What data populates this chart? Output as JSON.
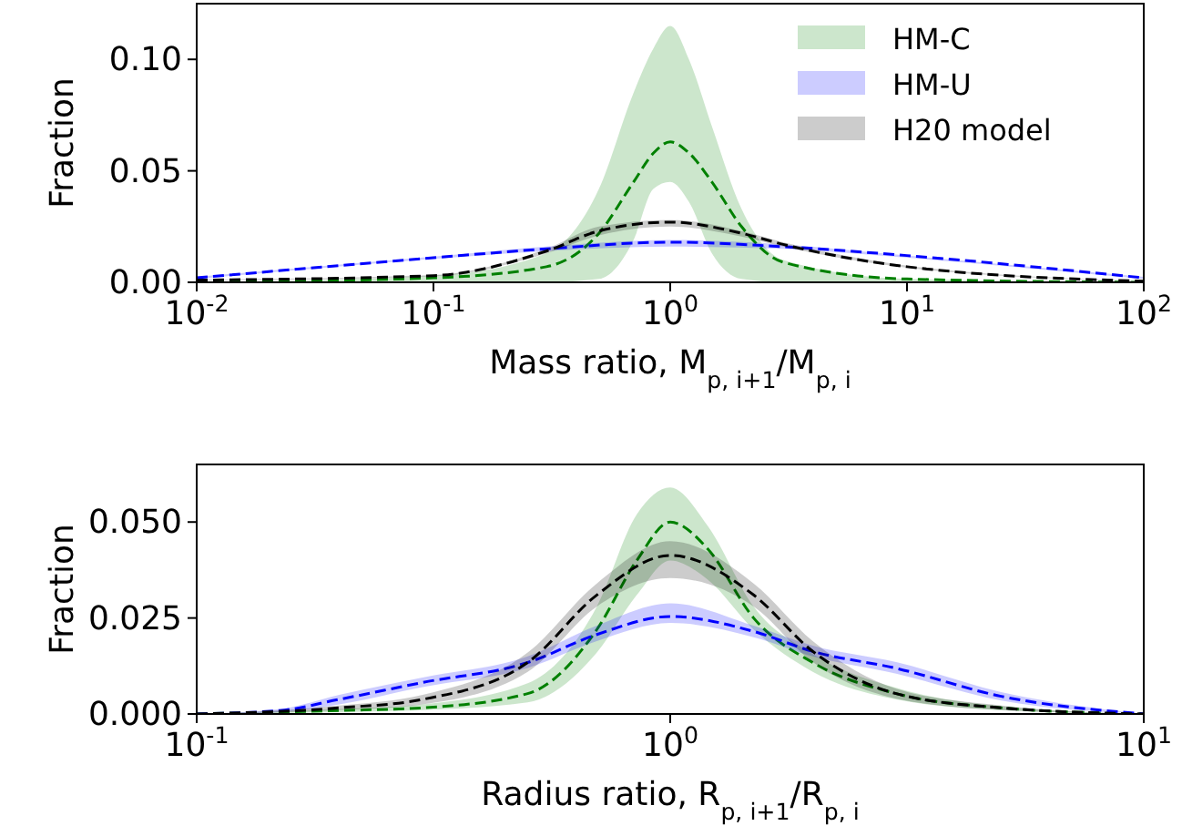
{
  "chart_data": [
    {
      "type": "line",
      "xlabel": "Mass ratio, M$_{p, i+1}$/M$_{p, i}$",
      "ylabel": "Fraction",
      "log": "x",
      "legend": "top right",
      "line_style": "dashed",
      "grid": false,
      "xlim": [
        0.01,
        100
      ],
      "ylim": [
        0,
        0.125
      ],
      "xticks": [
        {
          "value": 0.01,
          "label": "10$^{-2}$"
        },
        {
          "value": 0.1,
          "label": "10$^{-1}$"
        },
        {
          "value": 1,
          "label": "10$^{0}$"
        },
        {
          "value": 10,
          "label": "10$^{1}$"
        },
        {
          "value": 100,
          "label": "10$^{2}$"
        }
      ],
      "yticks": [
        {
          "value": 0,
          "label": "0.00"
        },
        {
          "value": 0.05,
          "label": "0.05"
        },
        {
          "value": 0.1,
          "label": "0.10"
        }
      ],
      "series": [
        {
          "name": "HM-C",
          "color": "#008000",
          "x": [
            0.01,
            0.1,
            0.3,
            0.5,
            0.7,
            0.85,
            1,
            1.2,
            1.5,
            2,
            3,
            10,
            100
          ],
          "values": [
            0,
            0.002,
            0.007,
            0.022,
            0.045,
            0.058,
            0.063,
            0.058,
            0.045,
            0.025,
            0.009,
            0.0015,
            0
          ],
          "lower": [
            0,
            0,
            0,
            0.0015,
            0.019,
            0.042,
            0.045,
            0.036,
            0.013,
            0.0015,
            0,
            0,
            0
          ],
          "upper": [
            0,
            0.003,
            0.013,
            0.042,
            0.085,
            0.105,
            0.115,
            0.1,
            0.07,
            0.033,
            0.01,
            0.0015,
            0
          ]
        },
        {
          "name": "HM-U",
          "color": "#0000ff",
          "x": [
            0.01,
            0.1,
            0.3,
            1,
            3,
            10,
            100
          ],
          "values": [
            0.002,
            0.011,
            0.015,
            0.018,
            0.016,
            0.012,
            0.002
          ],
          "lower": [
            0.0015,
            0.0105,
            0.014,
            0.016,
            0.015,
            0.011,
            0.0015
          ],
          "upper": [
            0.0025,
            0.0115,
            0.016,
            0.019,
            0.017,
            0.012,
            0.0025
          ]
        },
        {
          "name": "H20 model",
          "color": "#000000",
          "x": [
            0.01,
            0.1,
            0.3,
            0.5,
            1,
            2,
            3,
            10,
            100
          ],
          "values": [
            0.001,
            0.003,
            0.014,
            0.023,
            0.027,
            0.022,
            0.017,
            0.007,
            0.0005
          ],
          "lower": [
            0.0008,
            0.0027,
            0.013,
            0.021,
            0.025,
            0.0205,
            0.016,
            0.0065,
            0.0004
          ],
          "upper": [
            0.0012,
            0.0033,
            0.015,
            0.025,
            0.028,
            0.023,
            0.018,
            0.0075,
            0.0006
          ]
        }
      ]
    },
    {
      "type": "line",
      "xlabel": "Radius ratio, R$_{p, i+1}$/R$_{p, i}$",
      "ylabel": "Fraction",
      "log": "x",
      "legend": false,
      "line_style": "dashed",
      "grid": false,
      "xlim": [
        0.1,
        10
      ],
      "ylim": [
        0,
        0.065
      ],
      "xticks": [
        {
          "value": 0.1,
          "label": "10$^{-1}$"
        },
        {
          "value": 1,
          "label": "10$^{0}$"
        },
        {
          "value": 10,
          "label": "10$^{1}$"
        }
      ],
      "yticks": [
        {
          "value": 0,
          "label": "0.000"
        },
        {
          "value": 0.025,
          "label": "0.025"
        },
        {
          "value": 0.05,
          "label": "0.050"
        }
      ],
      "series": [
        {
          "color": "#008000",
          "x": [
            0.1,
            0.2,
            0.3,
            0.5,
            0.7,
            0.85,
            1,
            1.2,
            1.5,
            2,
            3,
            5,
            10
          ],
          "values": [
            0,
            0.0009,
            0.0016,
            0.0053,
            0.022,
            0.04,
            0.05,
            0.043,
            0.025,
            0.0134,
            0.0053,
            0.0016,
            0
          ],
          "lower": [
            0,
            0.0005,
            0.001,
            0.003,
            0.016,
            0.031,
            0.04,
            0.035,
            0.022,
            0.011,
            0.0038,
            0.001,
            0
          ],
          "upper": [
            0,
            0.0013,
            0.0025,
            0.008,
            0.028,
            0.052,
            0.059,
            0.049,
            0.028,
            0.0156,
            0.0068,
            0.002,
            0
          ]
        },
        {
          "color": "#0000ff",
          "x": [
            0.1,
            0.15,
            0.2,
            0.3,
            0.5,
            0.7,
            1,
            1.5,
            2,
            3,
            5,
            10
          ],
          "values": [
            0,
            0.0009,
            0.0038,
            0.0082,
            0.0134,
            0.0207,
            0.0254,
            0.0215,
            0.0163,
            0.0119,
            0.0046,
            0
          ],
          "lower": [
            0,
            0.0005,
            0.0025,
            0.007,
            0.012,
            0.019,
            0.0237,
            0.02,
            0.015,
            0.0105,
            0.0035,
            0
          ],
          "upper": [
            0,
            0.0013,
            0.005,
            0.0095,
            0.015,
            0.023,
            0.0288,
            0.023,
            0.0178,
            0.0135,
            0.0057,
            0
          ]
        },
        {
          "color": "#000000",
          "x": [
            0.1,
            0.2,
            0.3,
            0.5,
            0.7,
            1,
            1.5,
            2,
            3,
            5,
            10
          ],
          "values": [
            0,
            0.0016,
            0.0038,
            0.0134,
            0.031,
            0.0413,
            0.031,
            0.0163,
            0.0053,
            0.0016,
            0
          ],
          "lower": [
            0,
            0.001,
            0.0025,
            0.011,
            0.028,
            0.0354,
            0.028,
            0.0135,
            0.004,
            0.001,
            0
          ],
          "upper": [
            0,
            0.0022,
            0.005,
            0.016,
            0.034,
            0.045,
            0.034,
            0.019,
            0.0066,
            0.0022,
            0
          ]
        }
      ]
    }
  ]
}
